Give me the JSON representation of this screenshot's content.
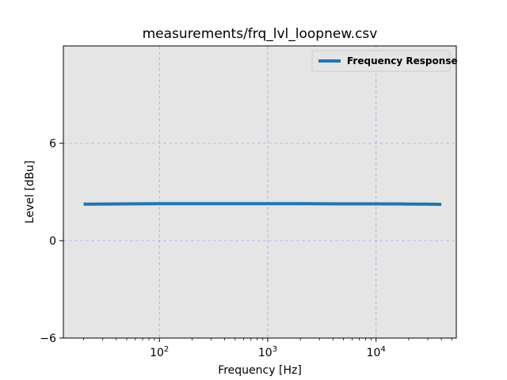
{
  "chart_data": {
    "type": "line",
    "title": "measurements/frq_lvl_loopnew.csv",
    "xlabel": "Frequency [Hz]",
    "ylabel": "Level [dBu]",
    "xscale": "log",
    "xlim": [
      13,
      55000
    ],
    "ylim": [
      -6,
      12
    ],
    "x_ticks": [
      {
        "value": 100,
        "base": "10",
        "exp": "2"
      },
      {
        "value": 1000,
        "base": "10",
        "exp": "3"
      },
      {
        "value": 10000,
        "base": "10",
        "exp": "4"
      }
    ],
    "y_ticks": [
      {
        "value": -6,
        "label": "−6"
      },
      {
        "value": 0,
        "label": "0"
      },
      {
        "value": 6,
        "label": "6"
      }
    ],
    "grid": true,
    "legend_position": "top-right",
    "series": [
      {
        "name": "Frequency Response",
        "color": "#1f77b4",
        "x": [
          20,
          30,
          50,
          100,
          200,
          500,
          1000,
          2000,
          5000,
          10000,
          20000,
          30000,
          40000
        ],
        "y": [
          2.25,
          2.26,
          2.27,
          2.28,
          2.28,
          2.28,
          2.28,
          2.28,
          2.27,
          2.27,
          2.26,
          2.25,
          2.24
        ]
      }
    ],
    "colors": {
      "plot_background": "#e5e5e5",
      "grid": "#a6a6ff"
    }
  }
}
